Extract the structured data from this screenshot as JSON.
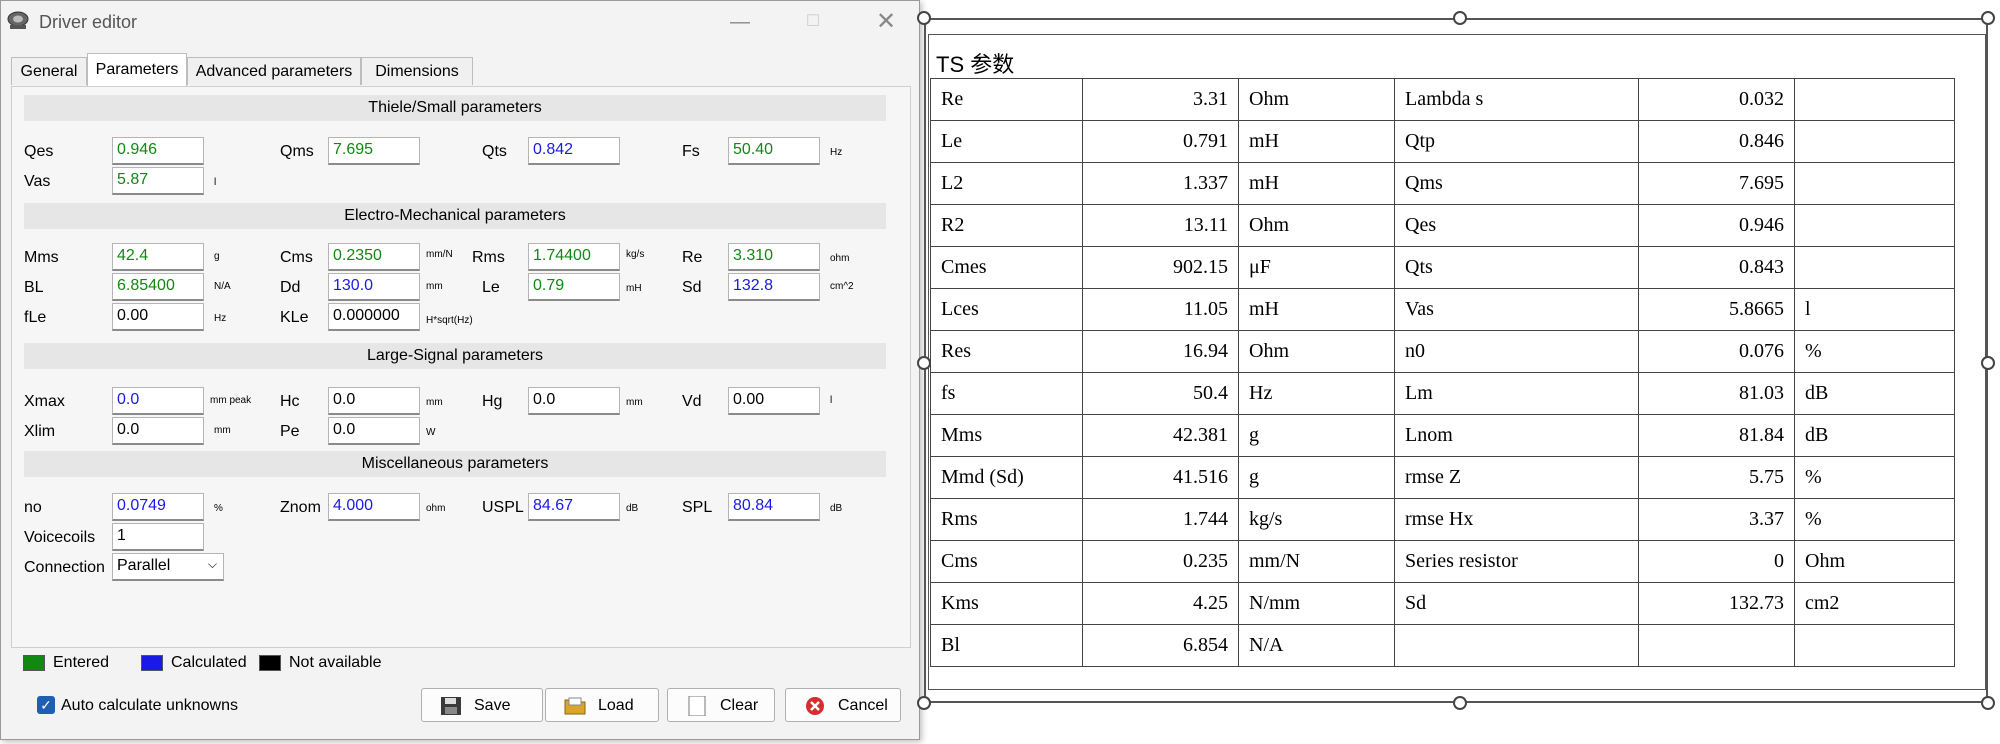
{
  "window": {
    "title": "Driver editor"
  },
  "tabs": [
    {
      "label": "General"
    },
    {
      "label": "Parameters"
    },
    {
      "label": "Advanced parameters"
    },
    {
      "label": "Dimensions"
    }
  ],
  "sections": {
    "thiele_small": "Thiele/Small parameters",
    "electro_mech": "Electro-Mechanical parameters",
    "large_signal": "Large-Signal parameters",
    "misc": "Miscellaneous parameters"
  },
  "fields": {
    "qes": {
      "label": "Qes",
      "value": "0.946",
      "status": "entered"
    },
    "qms": {
      "label": "Qms",
      "value": "7.695",
      "status": "entered"
    },
    "qts": {
      "label": "Qts",
      "value": "0.842",
      "status": "calculated"
    },
    "fs": {
      "label": "Fs",
      "value": "50.40",
      "unit": "Hz",
      "status": "entered"
    },
    "vas": {
      "label": "Vas",
      "value": "5.87",
      "unit": "l",
      "status": "entered"
    },
    "mms": {
      "label": "Mms",
      "value": "42.4",
      "unit": "g",
      "status": "entered"
    },
    "cms": {
      "label": "Cms",
      "value": "0.2350",
      "unit": "mm/N",
      "status": "entered"
    },
    "rms": {
      "label": "Rms",
      "value": "1.74400",
      "unit": "kg/s",
      "status": "entered"
    },
    "re": {
      "label": "Re",
      "value": "3.310",
      "unit": "ohm",
      "status": "entered"
    },
    "bl": {
      "label": "BL",
      "value": "6.85400",
      "unit": "N/A",
      "status": "entered"
    },
    "dd": {
      "label": "Dd",
      "value": "130.0",
      "unit": "mm",
      "status": "calculated"
    },
    "le": {
      "label": "Le",
      "value": "0.79",
      "unit": "mH",
      "status": "entered"
    },
    "sd": {
      "label": "Sd",
      "value": "132.8",
      "unit": "cm^2",
      "status": "calculated"
    },
    "fle": {
      "label": "fLe",
      "value": "0.00",
      "unit": "Hz",
      "status": "na"
    },
    "kle": {
      "label": "KLe",
      "value": "0.000000",
      "unit": "H*sqrt(Hz)",
      "status": "na"
    },
    "xmax": {
      "label": "Xmax",
      "value": "0.0",
      "unit": "mm peak",
      "status": "calculated"
    },
    "hc": {
      "label": "Hc",
      "value": "0.0",
      "unit": "mm",
      "status": "na"
    },
    "hg": {
      "label": "Hg",
      "value": "0.0",
      "unit": "mm",
      "status": "na"
    },
    "vd": {
      "label": "Vd",
      "value": "0.00",
      "unit": "l",
      "status": "na"
    },
    "xlim": {
      "label": "Xlim",
      "value": "0.0",
      "unit": "mm",
      "status": "na"
    },
    "pe": {
      "label": "Pe",
      "value": "0.0",
      "unit": "W",
      "status": "na"
    },
    "no": {
      "label": "no",
      "value": "0.0749",
      "unit": "%",
      "status": "calculated"
    },
    "znom": {
      "label": "Znom",
      "value": "4.000",
      "unit": "ohm",
      "status": "calculated"
    },
    "uspl": {
      "label": "USPL",
      "value": "84.67",
      "unit": "dB",
      "status": "calculated"
    },
    "spl": {
      "label": "SPL",
      "value": "80.84",
      "unit": "dB",
      "status": "calculated"
    },
    "voicecoils": {
      "label": "Voicecoils",
      "value": "1",
      "status": "na"
    }
  },
  "connection": {
    "label": "Connection",
    "value": "Parallel"
  },
  "legend": {
    "entered": {
      "label": "Entered",
      "color": "#118811"
    },
    "calculated": {
      "label": "Calculated",
      "color": "#1a1ae6"
    },
    "na": {
      "label": "Not available",
      "color": "#000000"
    }
  },
  "autocalc": {
    "label": "Auto calculate unknowns",
    "checked": true
  },
  "buttons": {
    "save": "Save",
    "load": "Load",
    "clear": "Clear",
    "cancel": "Cancel"
  },
  "ts_table": {
    "title": "TS 参数",
    "rows": [
      [
        "Re",
        "3.31",
        "Ohm",
        "Lambda s",
        "0.032",
        ""
      ],
      [
        "Le",
        "0.791",
        "mH",
        "Qtp",
        "0.846",
        ""
      ],
      [
        "L2",
        "1.337",
        "mH",
        "Qms",
        "7.695",
        ""
      ],
      [
        "R2",
        "13.11",
        "Ohm",
        "Qes",
        "0.946",
        ""
      ],
      [
        "Cmes",
        "902.15",
        "μF",
        "Qts",
        "0.843",
        ""
      ],
      [
        "Lces",
        "11.05",
        "mH",
        "Vas",
        "5.8665",
        "l"
      ],
      [
        "Res",
        "16.94",
        "Ohm",
        "n0",
        "0.076",
        "%"
      ],
      [
        "fs",
        "50.4",
        "Hz",
        "Lm",
        "81.03",
        "dB"
      ],
      [
        "Mms",
        "42.381",
        "g",
        "Lnom",
        "81.84",
        "dB"
      ],
      [
        "Mmd (Sd)",
        "41.516",
        "g",
        "rmse Z",
        "5.75",
        "%"
      ],
      [
        "Rms",
        "1.744",
        "kg/s",
        "rmse Hx",
        "3.37",
        "%"
      ],
      [
        "Cms",
        "0.235",
        "mm/N",
        "Series resistor",
        "0",
        "Ohm"
      ],
      [
        "Kms",
        "4.25",
        "N/mm",
        "Sd",
        "132.73",
        "cm2"
      ],
      [
        "Bl",
        "6.854",
        "N/A",
        "",
        "",
        ""
      ]
    ]
  }
}
